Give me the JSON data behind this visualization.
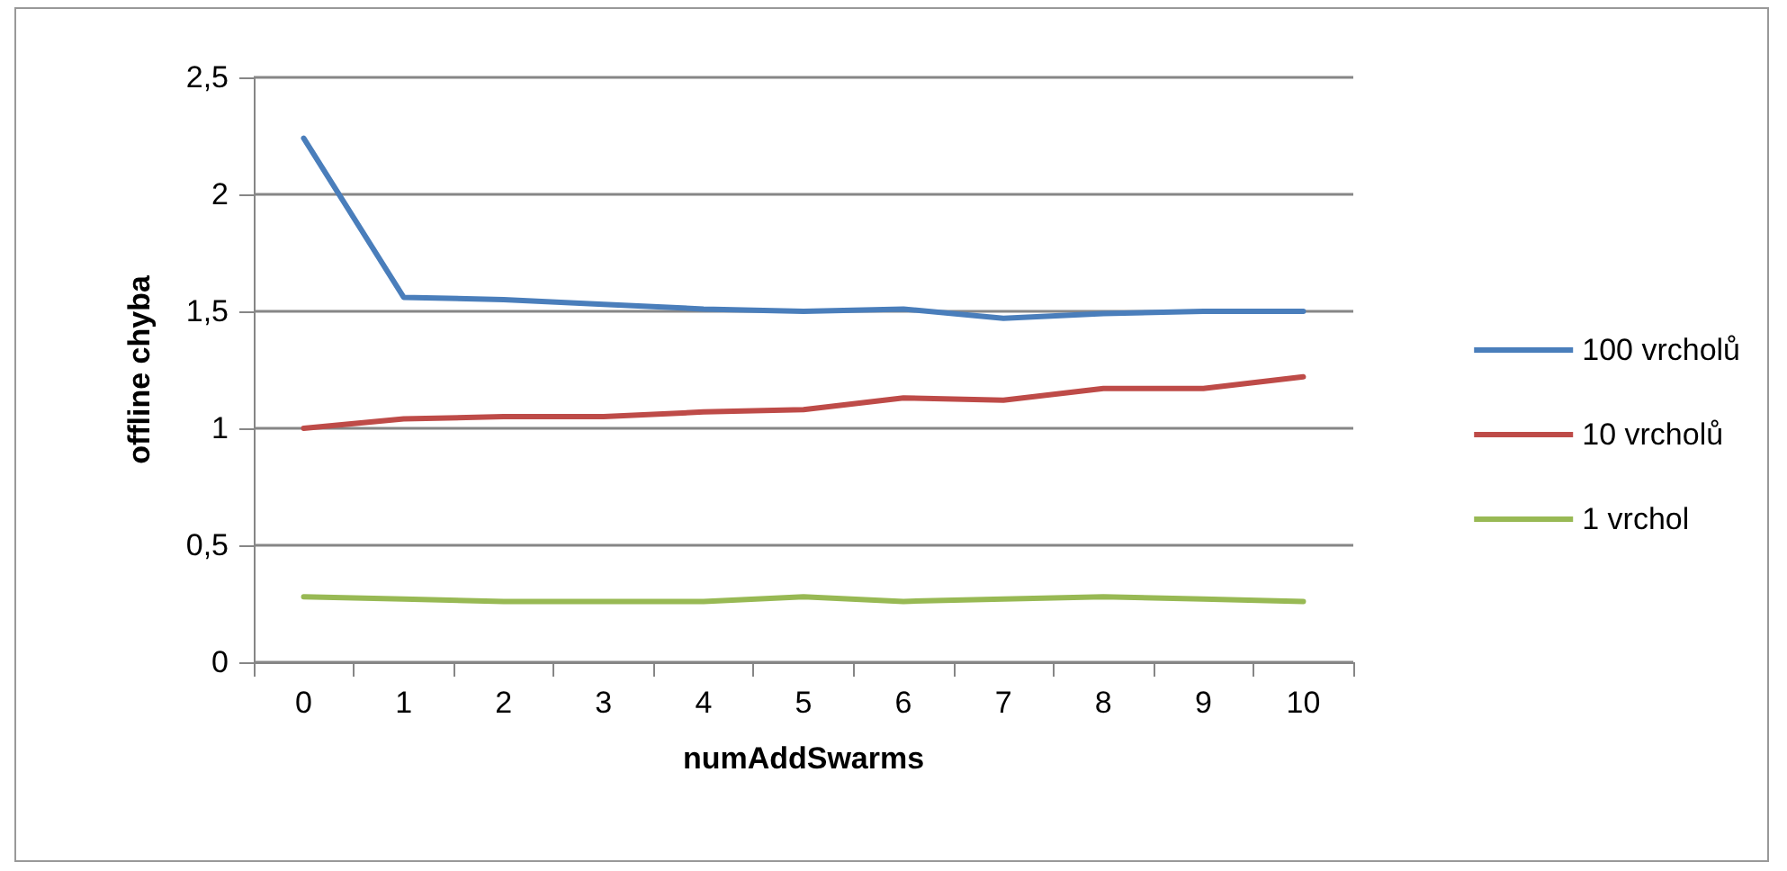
{
  "chart_data": {
    "type": "line",
    "xlabel": "numAddSwarms",
    "ylabel": "offline chyba",
    "categories": [
      "0",
      "1",
      "2",
      "3",
      "4",
      "5",
      "6",
      "7",
      "8",
      "9",
      "10"
    ],
    "series": [
      {
        "name": "100 vrcholů",
        "color": "#4a7ebb",
        "values": [
          2.24,
          1.56,
          1.55,
          1.53,
          1.51,
          1.5,
          1.51,
          1.47,
          1.49,
          1.5,
          1.5
        ]
      },
      {
        "name": "10 vrcholů",
        "color": "#be4b48",
        "values": [
          1.0,
          1.04,
          1.05,
          1.05,
          1.07,
          1.08,
          1.13,
          1.12,
          1.17,
          1.17,
          1.22
        ]
      },
      {
        "name": "1 vrchol",
        "color": "#98b954",
        "values": [
          0.28,
          0.27,
          0.26,
          0.26,
          0.26,
          0.28,
          0.26,
          0.27,
          0.28,
          0.27,
          0.26
        ]
      }
    ],
    "ylim": [
      0,
      2.5
    ],
    "yticks": [
      {
        "value": 0,
        "label": "0"
      },
      {
        "value": 0.5,
        "label": "0,5"
      },
      {
        "value": 1,
        "label": "1"
      },
      {
        "value": 1.5,
        "label": "1,5"
      },
      {
        "value": 2,
        "label": "2"
      },
      {
        "value": 2.5,
        "label": "2,5"
      }
    ],
    "grid": "y",
    "legend": "right",
    "marker": "none",
    "line_style": "solid"
  }
}
